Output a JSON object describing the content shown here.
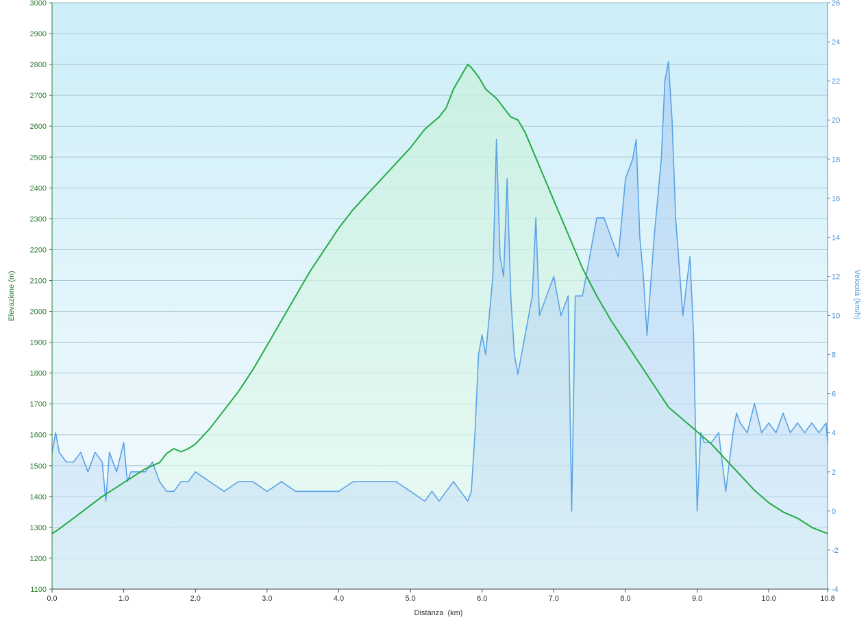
{
  "chart_data": {
    "type": "area",
    "xlabel": "Distanza  (km)",
    "ylabel": "Elevazione (m)",
    "y2label": "Velocità (km/h)",
    "xlim": [
      0,
      10.82
    ],
    "ylim": [
      1100,
      3000
    ],
    "y2lim": [
      -4,
      26
    ],
    "x_ticks": [
      "0.0",
      "1.0",
      "2.0",
      "3.0",
      "4.0",
      "5.0",
      "6.0",
      "7.0",
      "8.0",
      "9.0",
      "10.0",
      "10.8"
    ],
    "x_tick_values": [
      0,
      1,
      2,
      3,
      4,
      5,
      6,
      7,
      8,
      9,
      10,
      10.82
    ],
    "y_ticks": [
      1100,
      1200,
      1300,
      1400,
      1500,
      1600,
      1700,
      1800,
      1900,
      2000,
      2100,
      2200,
      2300,
      2400,
      2500,
      2600,
      2700,
      2800,
      2900,
      3000
    ],
    "y2_ticks": [
      -4,
      -2,
      0,
      2,
      4,
      6,
      8,
      10,
      12,
      14,
      16,
      18,
      20,
      22,
      24,
      26
    ],
    "grid": true,
    "colors": {
      "elevation": "#22aa44",
      "speed": "#5aa2e6",
      "bg_top": "#cdeef8",
      "bg_bottom": "#f2fafd"
    },
    "series": [
      {
        "name": "Elevazione (m)",
        "axis": "left",
        "x": [
          0,
          0.1,
          0.3,
          0.5,
          0.7,
          0.9,
          1.1,
          1.3,
          1.5,
          1.6,
          1.7,
          1.8,
          1.9,
          2.0,
          2.2,
          2.4,
          2.6,
          2.8,
          3.0,
          3.2,
          3.4,
          3.6,
          3.8,
          4.0,
          4.2,
          4.4,
          4.6,
          4.8,
          5.0,
          5.2,
          5.4,
          5.5,
          5.6,
          5.7,
          5.8,
          5.85,
          5.95,
          6.05,
          6.2,
          6.3,
          6.4,
          6.5,
          6.6,
          6.8,
          7.0,
          7.2,
          7.4,
          7.6,
          7.8,
          8.0,
          8.2,
          8.4,
          8.6,
          8.8,
          9.0,
          9.2,
          9.4,
          9.6,
          9.8,
          10.0,
          10.2,
          10.4,
          10.6,
          10.82
        ],
        "values": [
          1280,
          1295,
          1330,
          1365,
          1400,
          1430,
          1460,
          1490,
          1510,
          1540,
          1555,
          1545,
          1555,
          1570,
          1620,
          1680,
          1740,
          1810,
          1890,
          1970,
          2050,
          2130,
          2200,
          2270,
          2330,
          2380,
          2430,
          2480,
          2530,
          2590,
          2630,
          2660,
          2720,
          2760,
          2800,
          2790,
          2760,
          2720,
          2690,
          2660,
          2630,
          2620,
          2580,
          2470,
          2360,
          2250,
          2140,
          2050,
          1970,
          1900,
          1830,
          1760,
          1690,
          1650,
          1610,
          1570,
          1520,
          1470,
          1420,
          1380,
          1350,
          1330,
          1300,
          1280
        ]
      },
      {
        "name": "Velocità (km/h)",
        "axis": "right",
        "x": [
          0,
          0.05,
          0.1,
          0.2,
          0.3,
          0.4,
          0.5,
          0.6,
          0.7,
          0.75,
          0.8,
          0.9,
          1.0,
          1.05,
          1.1,
          1.2,
          1.3,
          1.4,
          1.5,
          1.6,
          1.7,
          1.8,
          1.9,
          2.0,
          2.2,
          2.4,
          2.6,
          2.8,
          3.0,
          3.2,
          3.4,
          3.6,
          3.8,
          4.0,
          4.2,
          4.4,
          4.6,
          4.8,
          5.0,
          5.2,
          5.3,
          5.4,
          5.5,
          5.6,
          5.7,
          5.8,
          5.85,
          5.9,
          5.95,
          6.0,
          6.05,
          6.1,
          6.15,
          6.2,
          6.25,
          6.3,
          6.35,
          6.4,
          6.45,
          6.5,
          6.6,
          6.7,
          6.75,
          6.8,
          6.9,
          7.0,
          7.1,
          7.2,
          7.25,
          7.3,
          7.4,
          7.5,
          7.6,
          7.7,
          7.8,
          7.9,
          8.0,
          8.1,
          8.15,
          8.2,
          8.25,
          8.3,
          8.4,
          8.5,
          8.55,
          8.6,
          8.65,
          8.7,
          8.8,
          8.9,
          8.95,
          9.0,
          9.05,
          9.1,
          9.2,
          9.3,
          9.4,
          9.5,
          9.55,
          9.6,
          9.7,
          9.8,
          9.9,
          10.0,
          10.1,
          10.2,
          10.3,
          10.4,
          10.5,
          10.6,
          10.7,
          10.8,
          10.82
        ],
        "values": [
          3,
          4,
          3,
          2.5,
          2.5,
          3,
          2,
          3,
          2.5,
          0.5,
          3,
          2,
          3.5,
          1.5,
          2,
          2,
          2,
          2.5,
          1.5,
          1,
          1,
          1.5,
          1.5,
          2,
          1.5,
          1,
          1.5,
          1.5,
          1,
          1.5,
          1,
          1,
          1,
          1,
          1.5,
          1.5,
          1.5,
          1.5,
          1,
          0.5,
          1,
          0.5,
          1,
          1.5,
          1,
          0.5,
          1,
          4,
          8,
          9,
          8,
          10,
          12,
          19,
          13,
          12,
          17,
          11,
          8,
          7,
          9,
          11,
          15,
          10,
          11,
          12,
          10,
          11,
          0,
          11,
          11,
          13,
          15,
          15,
          14,
          13,
          17,
          18,
          19,
          14,
          12,
          9,
          14,
          18,
          22,
          23,
          20,
          15,
          10,
          13,
          9,
          0,
          4,
          3.5,
          3.5,
          4,
          1,
          4,
          5,
          4.5,
          4,
          5.5,
          4,
          4.5,
          4,
          5,
          4,
          4.5,
          4,
          4.5,
          4,
          4.5,
          3.5
        ]
      }
    ]
  }
}
